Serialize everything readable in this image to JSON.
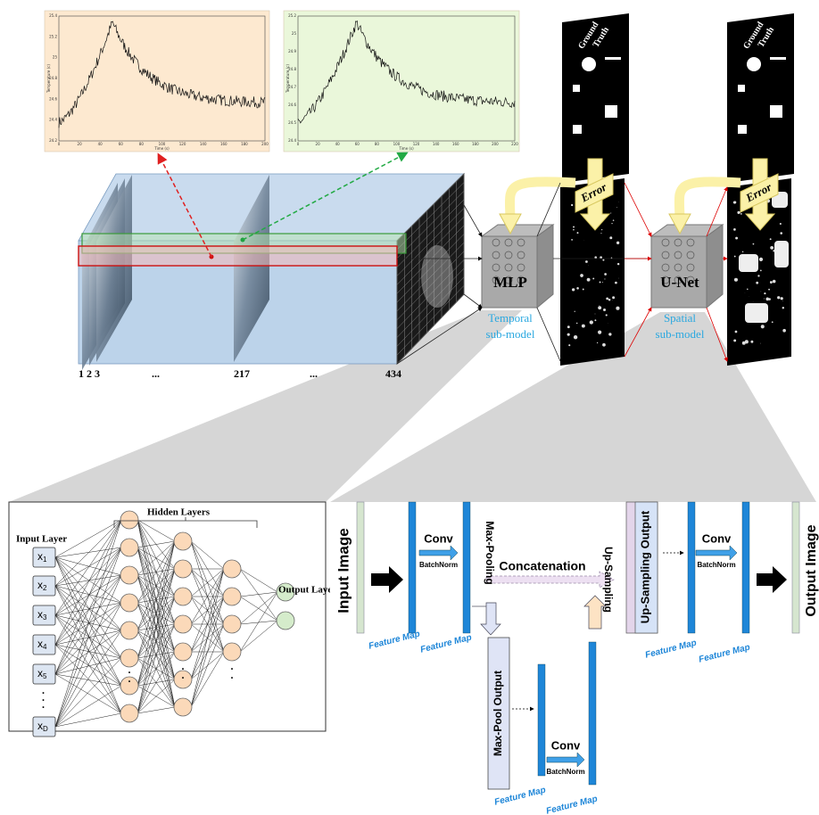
{
  "plots": [
    {
      "x_label": "Time (s)",
      "y_label": "Temperature (c)",
      "x_ticks": [
        "0",
        "20",
        "40",
        "60",
        "80",
        "100",
        "120",
        "140",
        "160",
        "180",
        "200"
      ],
      "y_ticks": [
        "25.4",
        "25.2",
        "25",
        "24.8",
        "24.6",
        "24.4",
        "24.2"
      ]
    },
    {
      "x_label": "Time (s)",
      "y_label": "Temperature (c)",
      "x_ticks": [
        "0",
        "20",
        "40",
        "60",
        "80",
        "100",
        "120",
        "140",
        "160",
        "180",
        "200",
        "220"
      ],
      "y_ticks": [
        "25.2",
        "25",
        "24.9",
        "24.8",
        "24.7",
        "24.6",
        "24.5",
        "24.4"
      ]
    }
  ],
  "frames": [
    "1",
    "2",
    "3",
    "...",
    "217",
    "...",
    "434"
  ],
  "models": [
    {
      "name": "MLP",
      "caption": [
        "Temporal",
        "sub-model"
      ]
    },
    {
      "name": "U-Net",
      "caption": [
        "Spatial",
        "sub-model"
      ]
    }
  ],
  "targets": [
    {
      "label": [
        "Ground",
        "Truth"
      ],
      "error": "Error"
    },
    {
      "label": [
        "Ground",
        "Truth"
      ],
      "error": "Error"
    }
  ],
  "mlp": {
    "hidden_title": "Hidden Layers",
    "input_title": "Input Layer",
    "output_title": "Output Layer",
    "inputs": [
      {
        "base": "x",
        "sub": "1"
      },
      {
        "base": "x",
        "sub": "2"
      },
      {
        "base": "x",
        "sub": "3"
      },
      {
        "base": "x",
        "sub": "4"
      },
      {
        "base": "x",
        "sub": "5"
      },
      {
        "base": "x",
        "sub": "D"
      }
    ],
    "ellipsis": "."
  },
  "unet": {
    "input": "Input Image",
    "output": "Output Image",
    "concatenation": "Concatenation",
    "max_pooling": "Max-Pooling",
    "up_sampling": "Up-Sampling",
    "max_pool_output": "Max-Pool Output",
    "up_sampling_output": "Up-Sampling Output",
    "convs": [
      {
        "conv": "Conv",
        "norm": "BatchNorm"
      },
      {
        "conv": "Conv",
        "norm": "BatchNorm"
      },
      {
        "conv": "Conv",
        "norm": "BatchNorm"
      }
    ],
    "feature_maps": [
      "Feature Map",
      "Feature Map",
      "Feature Map",
      "Feature Map",
      "Feature Map",
      "Feature Map"
    ]
  }
}
